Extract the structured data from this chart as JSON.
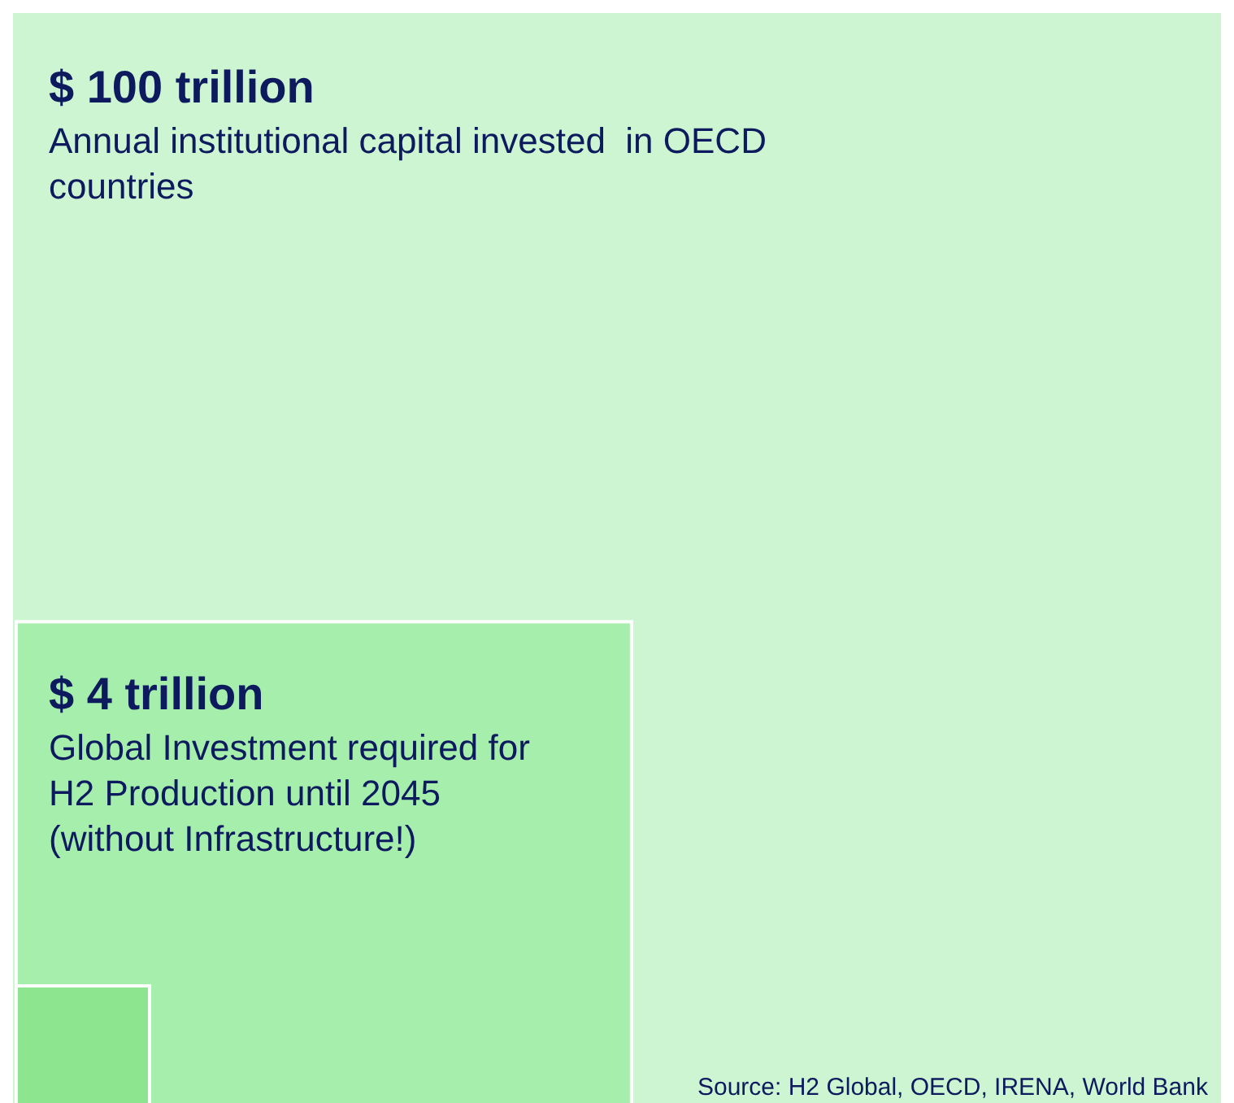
{
  "chart_data": {
    "type": "other",
    "categories": [
      "Annual institutional capital invested  in OECD countries",
      "Global Investment required for H2 Production until 2045 (without Infrastructure!)"
    ],
    "values": [
      100,
      4
    ],
    "value_labels": [
      "$ 100 trillion",
      "$ 4 trillion"
    ],
    "colors": [
      "#cdf5d2",
      "#a6eeac"
    ],
    "annotations": [
      "Source: H2 Global, OECD, IRENA, World Bank"
    ]
  }
}
